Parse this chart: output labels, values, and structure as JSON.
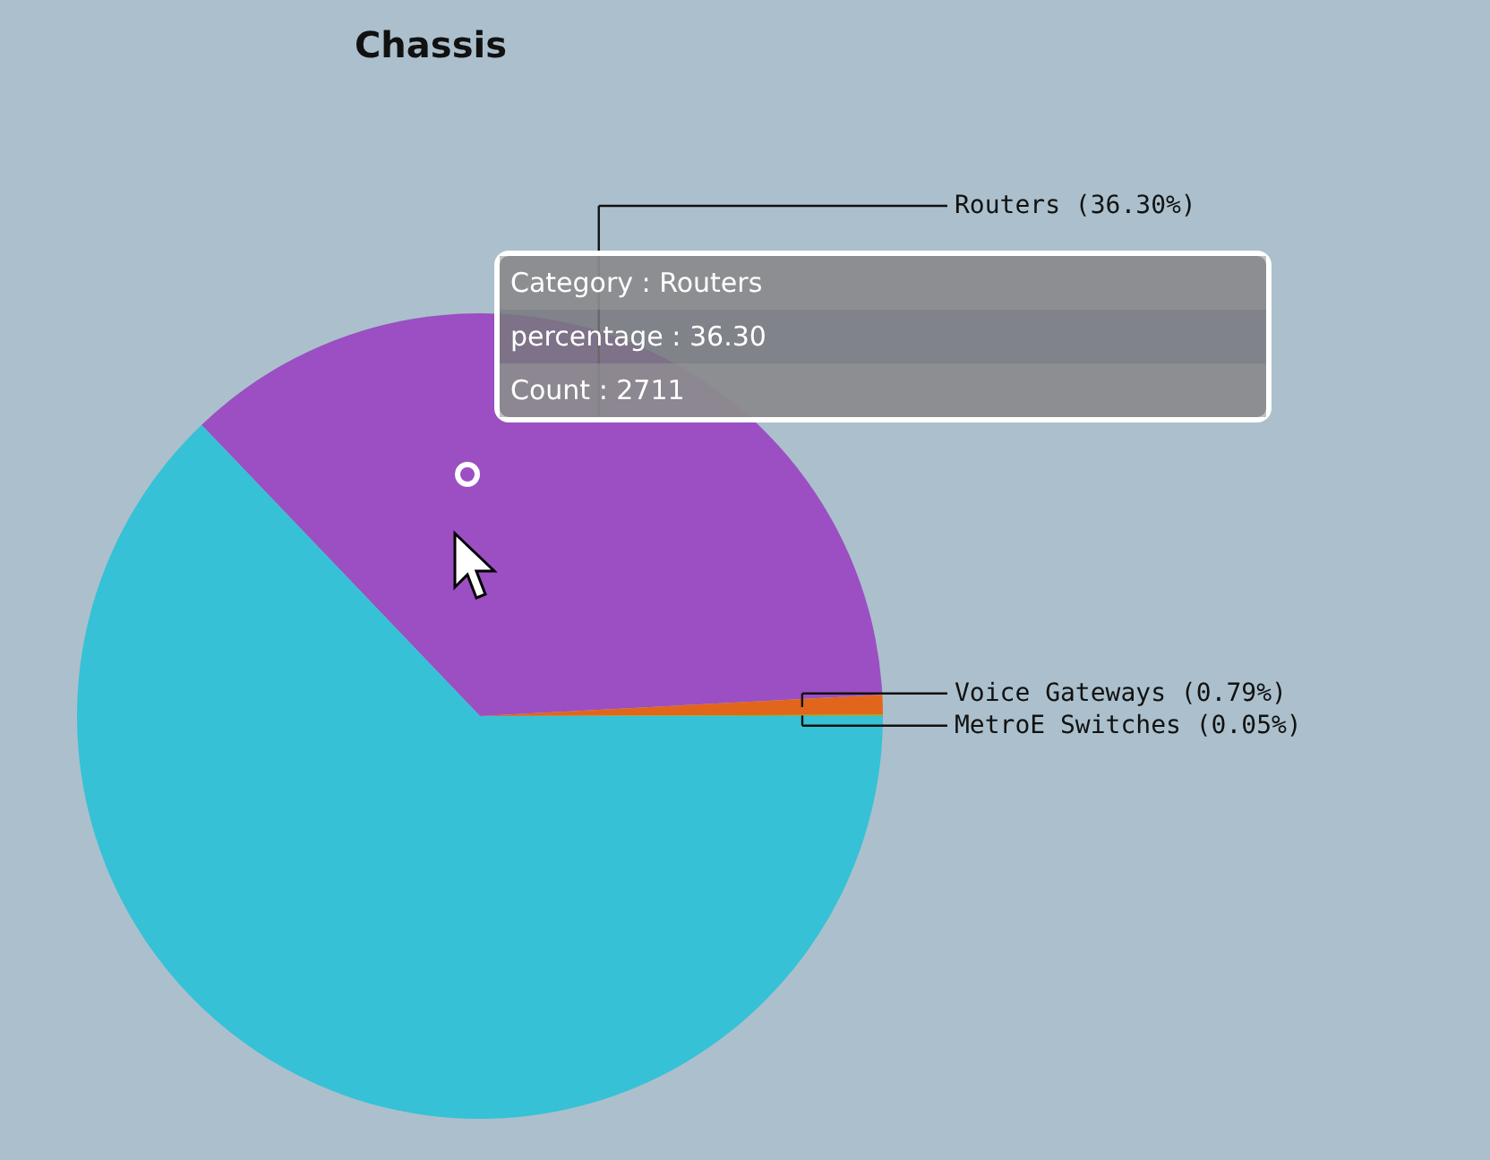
{
  "chart_data": {
    "type": "pie",
    "title": "Chassis",
    "categories": [
      "Routers",
      "Voice Gateways",
      "MetroE Switches",
      null
    ],
    "values": [
      36.3,
      0.79,
      0.05,
      62.86
    ],
    "colors": [
      "#9b4fc2",
      "#e2651c",
      "#8db52c",
      "#36c1d6"
    ],
    "value_labels": [
      "(36.30%)",
      "(0.79%)",
      "(0.05%)",
      null
    ],
    "annotations": [
      "Category : Routers",
      "percentage : 36.30",
      "Count : 2711"
    ]
  }
}
